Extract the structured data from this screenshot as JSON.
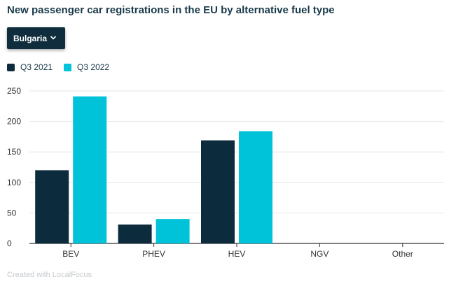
{
  "header": {
    "title": "New passenger car registrations in the EU by alternative fuel type"
  },
  "filter": {
    "selected": "Bulgaria"
  },
  "footer": {
    "credit": "Created with LocalFocus"
  },
  "colors": {
    "q3_2021": "#0c2b3c",
    "q3_2022": "#00c2d8",
    "grid": "#e6e6e6",
    "axis": "#333333"
  },
  "chart_data": {
    "type": "bar",
    "title": "New passenger car registrations in the EU by alternative fuel type",
    "xlabel": "",
    "ylabel": "",
    "categories": [
      "BEV",
      "PHEV",
      "HEV",
      "NGV",
      "Other"
    ],
    "series": [
      {
        "name": "Q3 2021",
        "values": [
          120,
          31,
          169,
          0,
          0
        ]
      },
      {
        "name": "Q3 2022",
        "values": [
          241,
          40,
          184,
          0,
          0
        ]
      }
    ],
    "ylim": [
      0,
      250
    ],
    "yticks": [
      0,
      50,
      100,
      150,
      200,
      250
    ],
    "grid": true,
    "legend": "top-left"
  }
}
